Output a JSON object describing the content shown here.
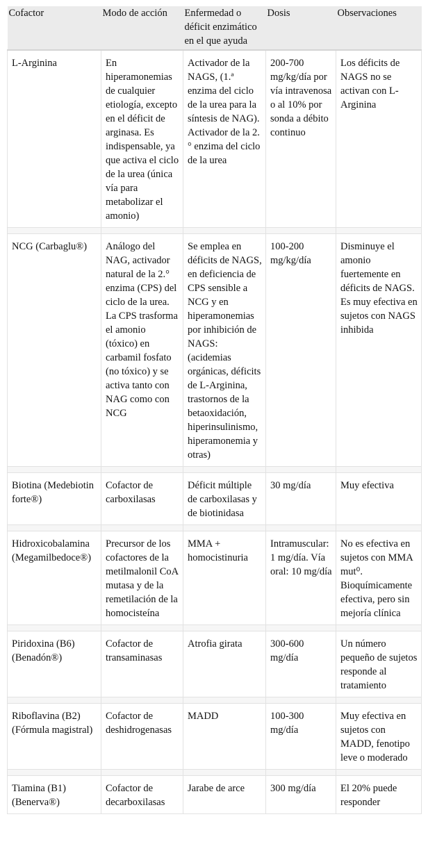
{
  "table": {
    "header": [
      "Cofactor",
      "Modo de acción",
      "Enfermedad o déficit enzimático en el que ayuda",
      "Dosis",
      "Observaciones"
    ],
    "rows": [
      [
        "L-Arginina",
        "En hiperamonemias de cualquier etiología, excepto en el déficit de arginasa. Es indispensable, ya que activa el ciclo de la urea (única vía para metabolizar el amonio)",
        "Activador de la NAGS, (1.ª enzima del ciclo de la urea para la síntesis de NAG). Activador de la 2.° enzima del ciclo de la urea",
        "200-700 mg/kg/día por vía intravenosa o al 10% por sonda a débito continuo",
        "Los déficits de NAGS no se activan con L-Arginina"
      ],
      [
        "NCG (Carbaglu®)",
        "Análogo del NAG, activador natural de la 2.° enzima (CPS) del ciclo de la urea. La CPS trasforma el amonio (tóxico) en carbamil fosfato (no tóxico) y se activa tanto con NAG como con NCG",
        "Se emplea en déficits de NAGS, en deficiencia de CPS sensible a NCG y en hiperamonemias por inhibición de NAGS: (acidemias orgánicas, déficits de L-Arginina, trastornos de la betaoxidación, hiperinsulinismo, hiperamonemia y otras)",
        "100-200 mg/kg/día",
        "Disminuye el amonio fuertemente en déficits de NAGS. Es muy efectiva en sujetos con NAGS inhibida"
      ],
      [
        "Biotina (Medebiotin forte®)",
        "Cofactor de carboxilasas",
        "Déficit múltiple de carboxilasas y de biotinidasa",
        "30 mg/día",
        "Muy efectiva"
      ],
      [
        "Hidroxicobalamina (Megamilbedoce®)",
        "Precursor de los cofactores de la metilmalonil CoA mutasa y de la remetilación de la homocisteína",
        "MMA + homocistinuria",
        "Intramuscular: 1 mg/día. Vía oral: 10 mg/día",
        "No es efectiva en sujetos con MMA mut⁰. Bioquímicamente efectiva, pero sin mejoría clínica"
      ],
      [
        "Piridoxina (B6) (Benadón®)",
        "Cofactor de transaminasas",
        "Atrofia girata",
        "300-600 mg/día",
        "Un número pequeño de sujetos responde al tratamiento"
      ],
      [
        "Riboflavina (B2) (Fórmula magistral)",
        "Cofactor de deshidrogenasas",
        "MADD",
        "100-300 mg/día",
        "Muy efectiva en sujetos con MADD, fenotipo leve o moderado"
      ],
      [
        "Tiamina (B1) (Benerva®)",
        "Cofactor de decarboxilasas",
        "Jarabe de arce",
        "300 mg/día",
        "El 20% puede responder"
      ]
    ]
  }
}
